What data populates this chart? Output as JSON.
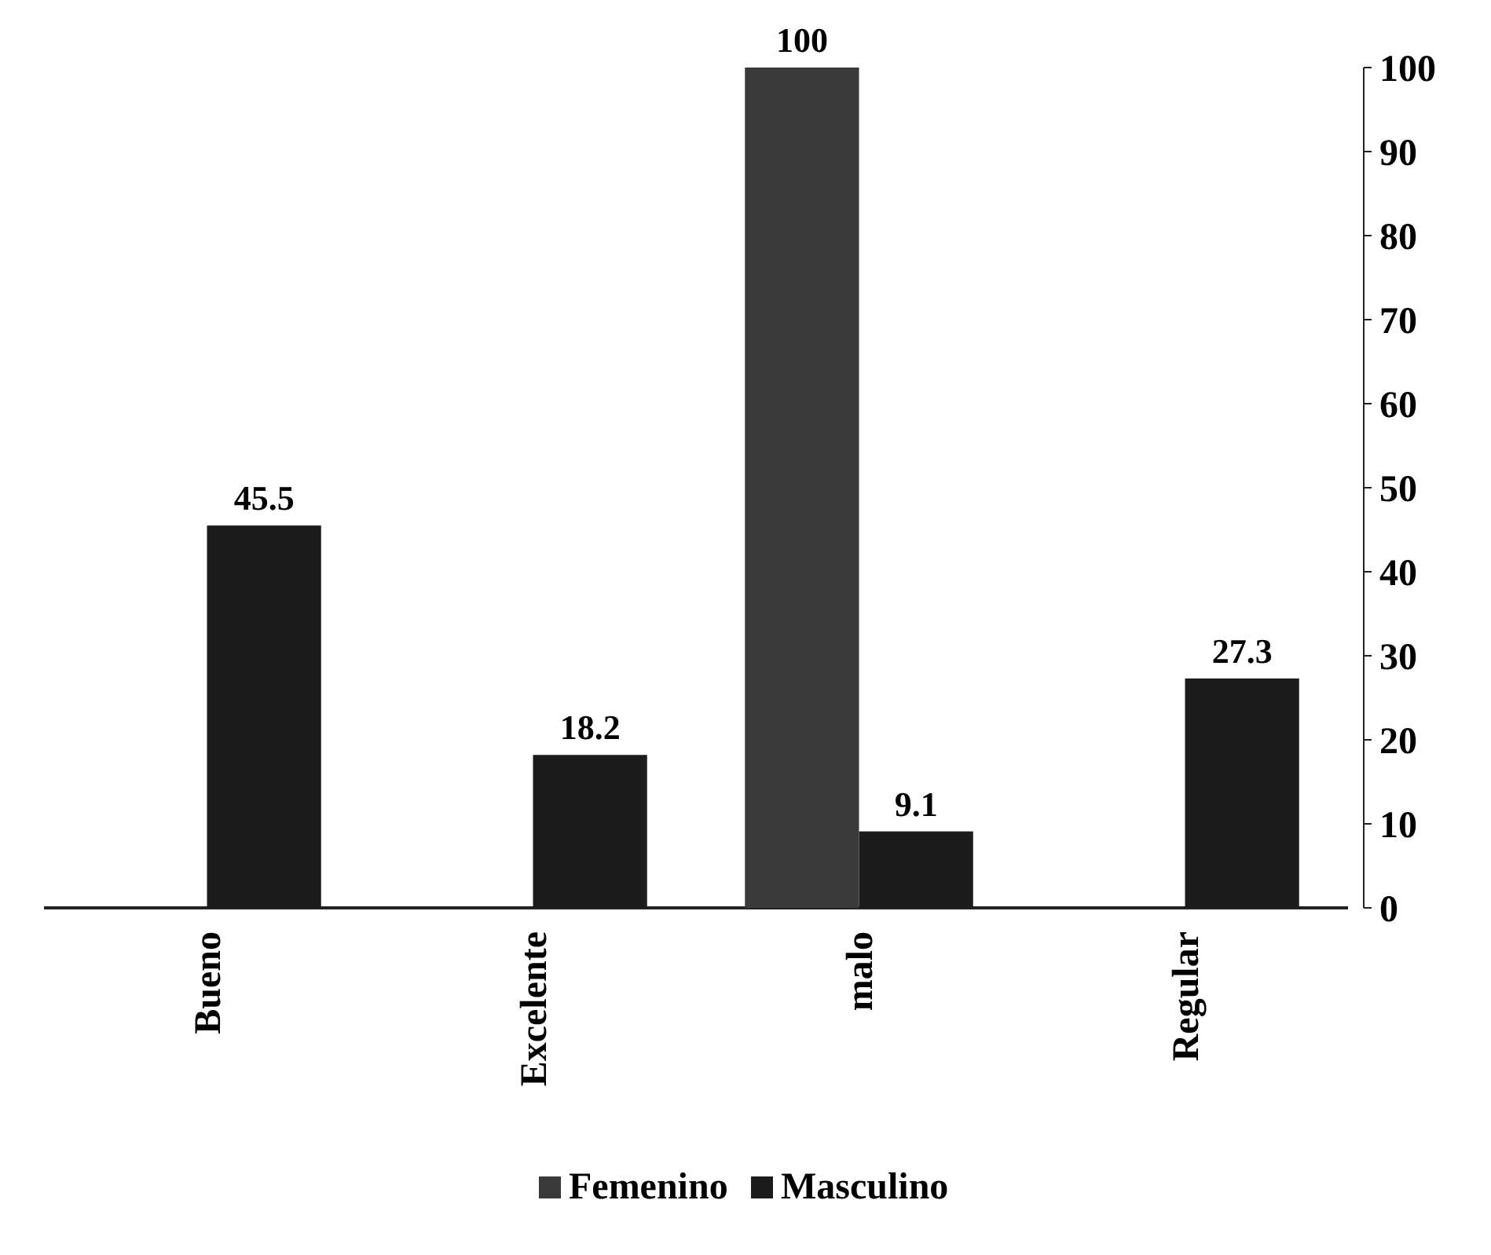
{
  "chart_data": {
    "type": "bar",
    "categories": [
      "Bueno",
      "Excelente",
      "malo",
      "Regular"
    ],
    "series": [
      {
        "name": "Femenino",
        "color": "#3a3a3a",
        "values": [
          null,
          null,
          100,
          null
        ]
      },
      {
        "name": "Masculino",
        "color": "#1c1c1c",
        "values": [
          45.5,
          18.2,
          9.1,
          27.3
        ]
      }
    ],
    "ylim": [
      0,
      100
    ],
    "yticks": [
      0,
      10,
      20,
      30,
      40,
      50,
      60,
      70,
      80,
      90,
      100
    ],
    "data_labels": true,
    "legend": "bottom",
    "grid": false
  }
}
